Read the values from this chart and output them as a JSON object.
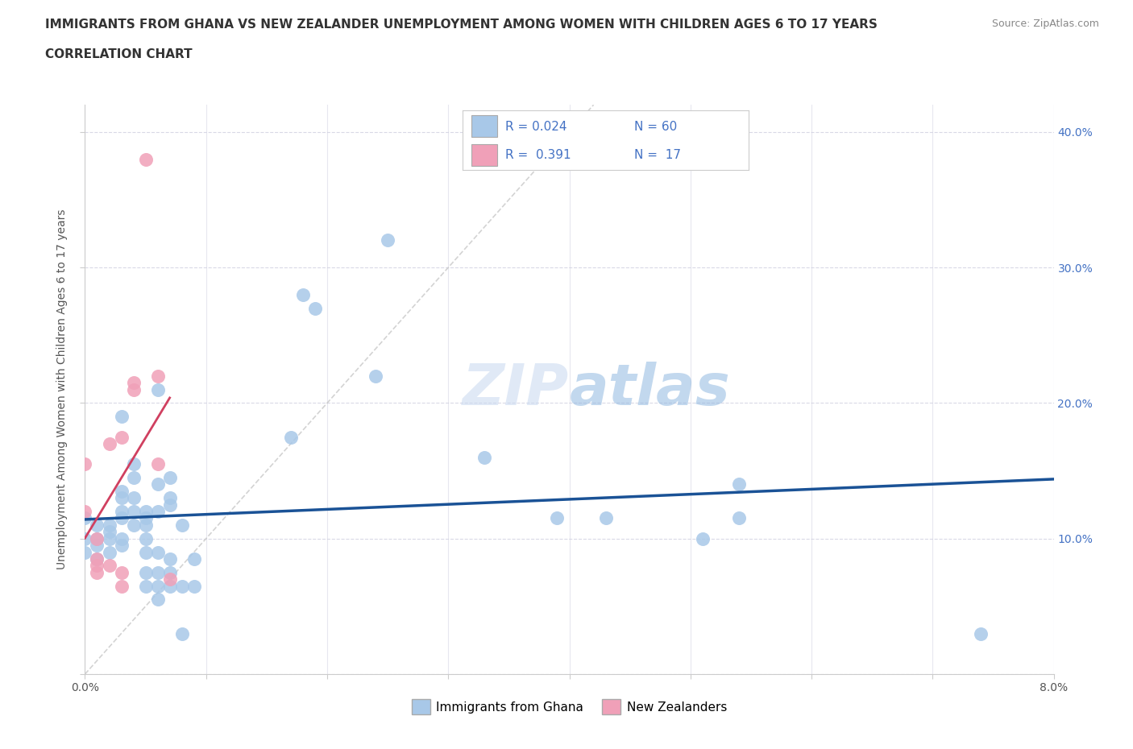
{
  "title": "IMMIGRANTS FROM GHANA VS NEW ZEALANDER UNEMPLOYMENT AMONG WOMEN WITH CHILDREN AGES 6 TO 17 YEARS",
  "subtitle": "CORRELATION CHART",
  "source": "Source: ZipAtlas.com",
  "ylabel": "Unemployment Among Women with Children Ages 6 to 17 years",
  "xlim": [
    0.0,
    0.08
  ],
  "ylim": [
    0.0,
    0.42
  ],
  "xtick_positions": [
    0.0,
    0.01,
    0.02,
    0.03,
    0.04,
    0.05,
    0.06,
    0.07,
    0.08
  ],
  "xticklabels": [
    "0.0%",
    "",
    "",
    "",
    "",
    "",
    "",
    "",
    "8.0%"
  ],
  "ytick_positions": [
    0.0,
    0.1,
    0.2,
    0.3,
    0.4
  ],
  "ytick_right_labels": [
    "10.0%",
    "20.0%",
    "30.0%",
    "40.0%"
  ],
  "r_ghana": 0.024,
  "n_ghana": 60,
  "r_nz": 0.391,
  "n_nz": 17,
  "color_ghana": "#a8c8e8",
  "color_ghana_line": "#1a5296",
  "color_nz": "#f0a0b8",
  "color_nz_line": "#d04060",
  "color_diagonal": "#c8c8c8",
  "watermark": "ZIPatlas",
  "ghana_points": [
    [
      0.0,
      0.1
    ],
    [
      0.0,
      0.115
    ],
    [
      0.0,
      0.09
    ],
    [
      0.001,
      0.1
    ],
    [
      0.001,
      0.11
    ],
    [
      0.001,
      0.095
    ],
    [
      0.001,
      0.085
    ],
    [
      0.002,
      0.1
    ],
    [
      0.002,
      0.11
    ],
    [
      0.002,
      0.105
    ],
    [
      0.002,
      0.09
    ],
    [
      0.003,
      0.12
    ],
    [
      0.003,
      0.115
    ],
    [
      0.003,
      0.1
    ],
    [
      0.003,
      0.135
    ],
    [
      0.003,
      0.13
    ],
    [
      0.003,
      0.095
    ],
    [
      0.003,
      0.19
    ],
    [
      0.004,
      0.11
    ],
    [
      0.004,
      0.12
    ],
    [
      0.004,
      0.13
    ],
    [
      0.004,
      0.145
    ],
    [
      0.004,
      0.155
    ],
    [
      0.005,
      0.065
    ],
    [
      0.005,
      0.075
    ],
    [
      0.005,
      0.09
    ],
    [
      0.005,
      0.1
    ],
    [
      0.005,
      0.11
    ],
    [
      0.005,
      0.115
    ],
    [
      0.005,
      0.12
    ],
    [
      0.006,
      0.055
    ],
    [
      0.006,
      0.065
    ],
    [
      0.006,
      0.075
    ],
    [
      0.006,
      0.09
    ],
    [
      0.006,
      0.12
    ],
    [
      0.006,
      0.14
    ],
    [
      0.006,
      0.21
    ],
    [
      0.007,
      0.065
    ],
    [
      0.007,
      0.075
    ],
    [
      0.007,
      0.085
    ],
    [
      0.007,
      0.125
    ],
    [
      0.007,
      0.13
    ],
    [
      0.007,
      0.145
    ],
    [
      0.008,
      0.03
    ],
    [
      0.008,
      0.065
    ],
    [
      0.008,
      0.11
    ],
    [
      0.009,
      0.065
    ],
    [
      0.009,
      0.085
    ],
    [
      0.017,
      0.175
    ],
    [
      0.018,
      0.28
    ],
    [
      0.019,
      0.27
    ],
    [
      0.024,
      0.22
    ],
    [
      0.025,
      0.32
    ],
    [
      0.033,
      0.16
    ],
    [
      0.039,
      0.115
    ],
    [
      0.043,
      0.115
    ],
    [
      0.051,
      0.1
    ],
    [
      0.054,
      0.115
    ],
    [
      0.054,
      0.14
    ],
    [
      0.074,
      0.03
    ]
  ],
  "nz_points": [
    [
      0.0,
      0.155
    ],
    [
      0.0,
      0.12
    ],
    [
      0.001,
      0.08
    ],
    [
      0.001,
      0.085
    ],
    [
      0.001,
      0.075
    ],
    [
      0.001,
      0.1
    ],
    [
      0.002,
      0.08
    ],
    [
      0.002,
      0.17
    ],
    [
      0.003,
      0.065
    ],
    [
      0.003,
      0.075
    ],
    [
      0.003,
      0.175
    ],
    [
      0.004,
      0.21
    ],
    [
      0.004,
      0.215
    ],
    [
      0.005,
      0.38
    ],
    [
      0.006,
      0.155
    ],
    [
      0.006,
      0.22
    ],
    [
      0.007,
      0.07
    ]
  ],
  "ghana_line_slope": 0.5,
  "ghana_line_intercept": 0.113,
  "nz_line_slope": 18.0,
  "nz_line_intercept": 0.085
}
